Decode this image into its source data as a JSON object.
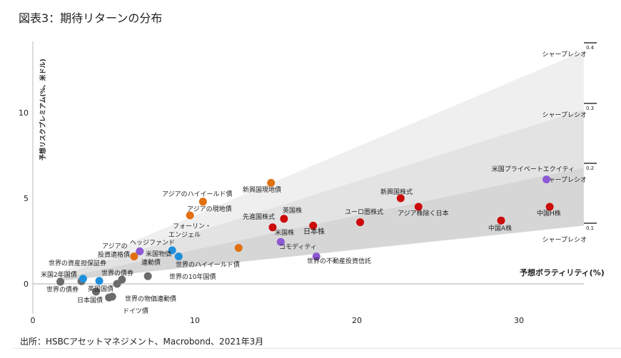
{
  "chart_data": {
    "type": "scatter",
    "title": "図表3：期待リターンの分布",
    "xlabel": "予想ボラティリティ(%)",
    "ylabel": "予想リスクプレミアム(%、米ドル)",
    "xlim": [
      0,
      35
    ],
    "ylim": [
      -1.5,
      14.5
    ],
    "x_ticks": [
      "0",
      "10",
      "20",
      "30"
    ],
    "y_ticks": [
      "0",
      "5",
      "10"
    ],
    "grid": false,
    "sharpe_lines": [
      {
        "value": 0.1,
        "label": "0.1",
        "name": "シャープレシオ"
      },
      {
        "value": 0.2,
        "label": "0.2",
        "name": "シャープレシオ"
      },
      {
        "value": 0.3,
        "label": "0.3",
        "name": "シャープレシオ"
      },
      {
        "value": 0.4,
        "label": "0.4",
        "name": "シャープレシオ"
      }
    ],
    "colors": {
      "bonds": "#6b6b6b",
      "credit": "#1f8fdc",
      "asia_em_debt": "#e07010",
      "equities": "#cc0a0a",
      "alternatives": "#8d58d4",
      "band1": "#d6d6d6",
      "band2": "#e3e3e3",
      "band3": "#efefef"
    },
    "points": [
      {
        "x": 1.7,
        "y": 0.12,
        "group": "bonds",
        "label": "米国2年国債"
      },
      {
        "x": 3.0,
        "y": 0.15,
        "group": "bonds",
        "label": "世界の債券"
      },
      {
        "x": 3.9,
        "y": -0.46,
        "group": "bonds",
        "label": "英国国債"
      },
      {
        "x": 4.7,
        "y": -0.8,
        "group": "bonds",
        "label": "日本国債"
      },
      {
        "x": 4.9,
        "y": -0.75,
        "group": "bonds",
        "label": "ドイツ債"
      },
      {
        "x": 5.2,
        "y": 0.0,
        "group": "bonds",
        "label": "世界の物価連動債"
      },
      {
        "x": 5.5,
        "y": 0.25,
        "group": "bonds",
        "label": "世界の債券"
      },
      {
        "x": 7.1,
        "y": 0.45,
        "group": "bonds",
        "label": "世界の10年国債"
      },
      {
        "x": 3.1,
        "y": 0.3,
        "group": "credit",
        "label": "世界の資産担保証券"
      },
      {
        "x": 4.1,
        "y": 0.17,
        "group": "credit",
        "label": "米国物価連動債"
      },
      {
        "x": 8.6,
        "y": 1.96,
        "group": "credit",
        "label": "フォーリン・エンジェル"
      },
      {
        "x": 9.0,
        "y": 1.6,
        "group": "credit",
        "label": "世界のハイイールド債"
      },
      {
        "x": 6.25,
        "y": 1.6,
        "group": "asia_em_debt",
        "label": "アジアの投資適格債"
      },
      {
        "x": 9.7,
        "y": 4.0,
        "group": "asia_em_debt",
        "label": "アジアの現地債"
      },
      {
        "x": 10.5,
        "y": 4.8,
        "group": "asia_em_debt",
        "label": "アジアのハイイールド債"
      },
      {
        "x": 12.7,
        "y": 2.1,
        "group": "asia_em_debt",
        "label": ""
      },
      {
        "x": 14.7,
        "y": 5.9,
        "group": "asia_em_debt",
        "label": "新興国現地債"
      },
      {
        "x": 6.6,
        "y": 1.9,
        "group": "alternatives",
        "label": "ヘッジファンド"
      },
      {
        "x": 15.3,
        "y": 2.45,
        "group": "alternatives",
        "label": "コモディティ"
      },
      {
        "x": 17.5,
        "y": 1.6,
        "group": "alternatives",
        "label": "世界の不動産投資信託"
      },
      {
        "x": 31.7,
        "y": 6.1,
        "group": "alternatives",
        "label": "米国プライベートエクイティ"
      },
      {
        "x": 14.8,
        "y": 3.3,
        "group": "equities",
        "label": "先進国株式"
      },
      {
        "x": 15.5,
        "y": 3.8,
        "group": "equities",
        "label": "英国株"
      },
      {
        "x": 17.3,
        "y": 3.4,
        "group": "equities",
        "label": "日本株"
      },
      {
        "x": 20.2,
        "y": 3.6,
        "group": "equities",
        "label": "ユーロ圏株式"
      },
      {
        "x": 22.7,
        "y": 5.0,
        "group": "equities",
        "label": "新興国株式"
      },
      {
        "x": 23.8,
        "y": 4.5,
        "group": "equities",
        "label": "アジア株除く日本"
      },
      {
        "x": 28.9,
        "y": 3.7,
        "group": "equities",
        "label": "中国A株"
      },
      {
        "x": 31.9,
        "y": 4.5,
        "group": "equities",
        "label": "中国H株"
      }
    ],
    "extra_labels": [
      "米国株"
    ]
  },
  "footer": "出所：HSBCアセットマネジメント、Macrobond、2021年3月"
}
